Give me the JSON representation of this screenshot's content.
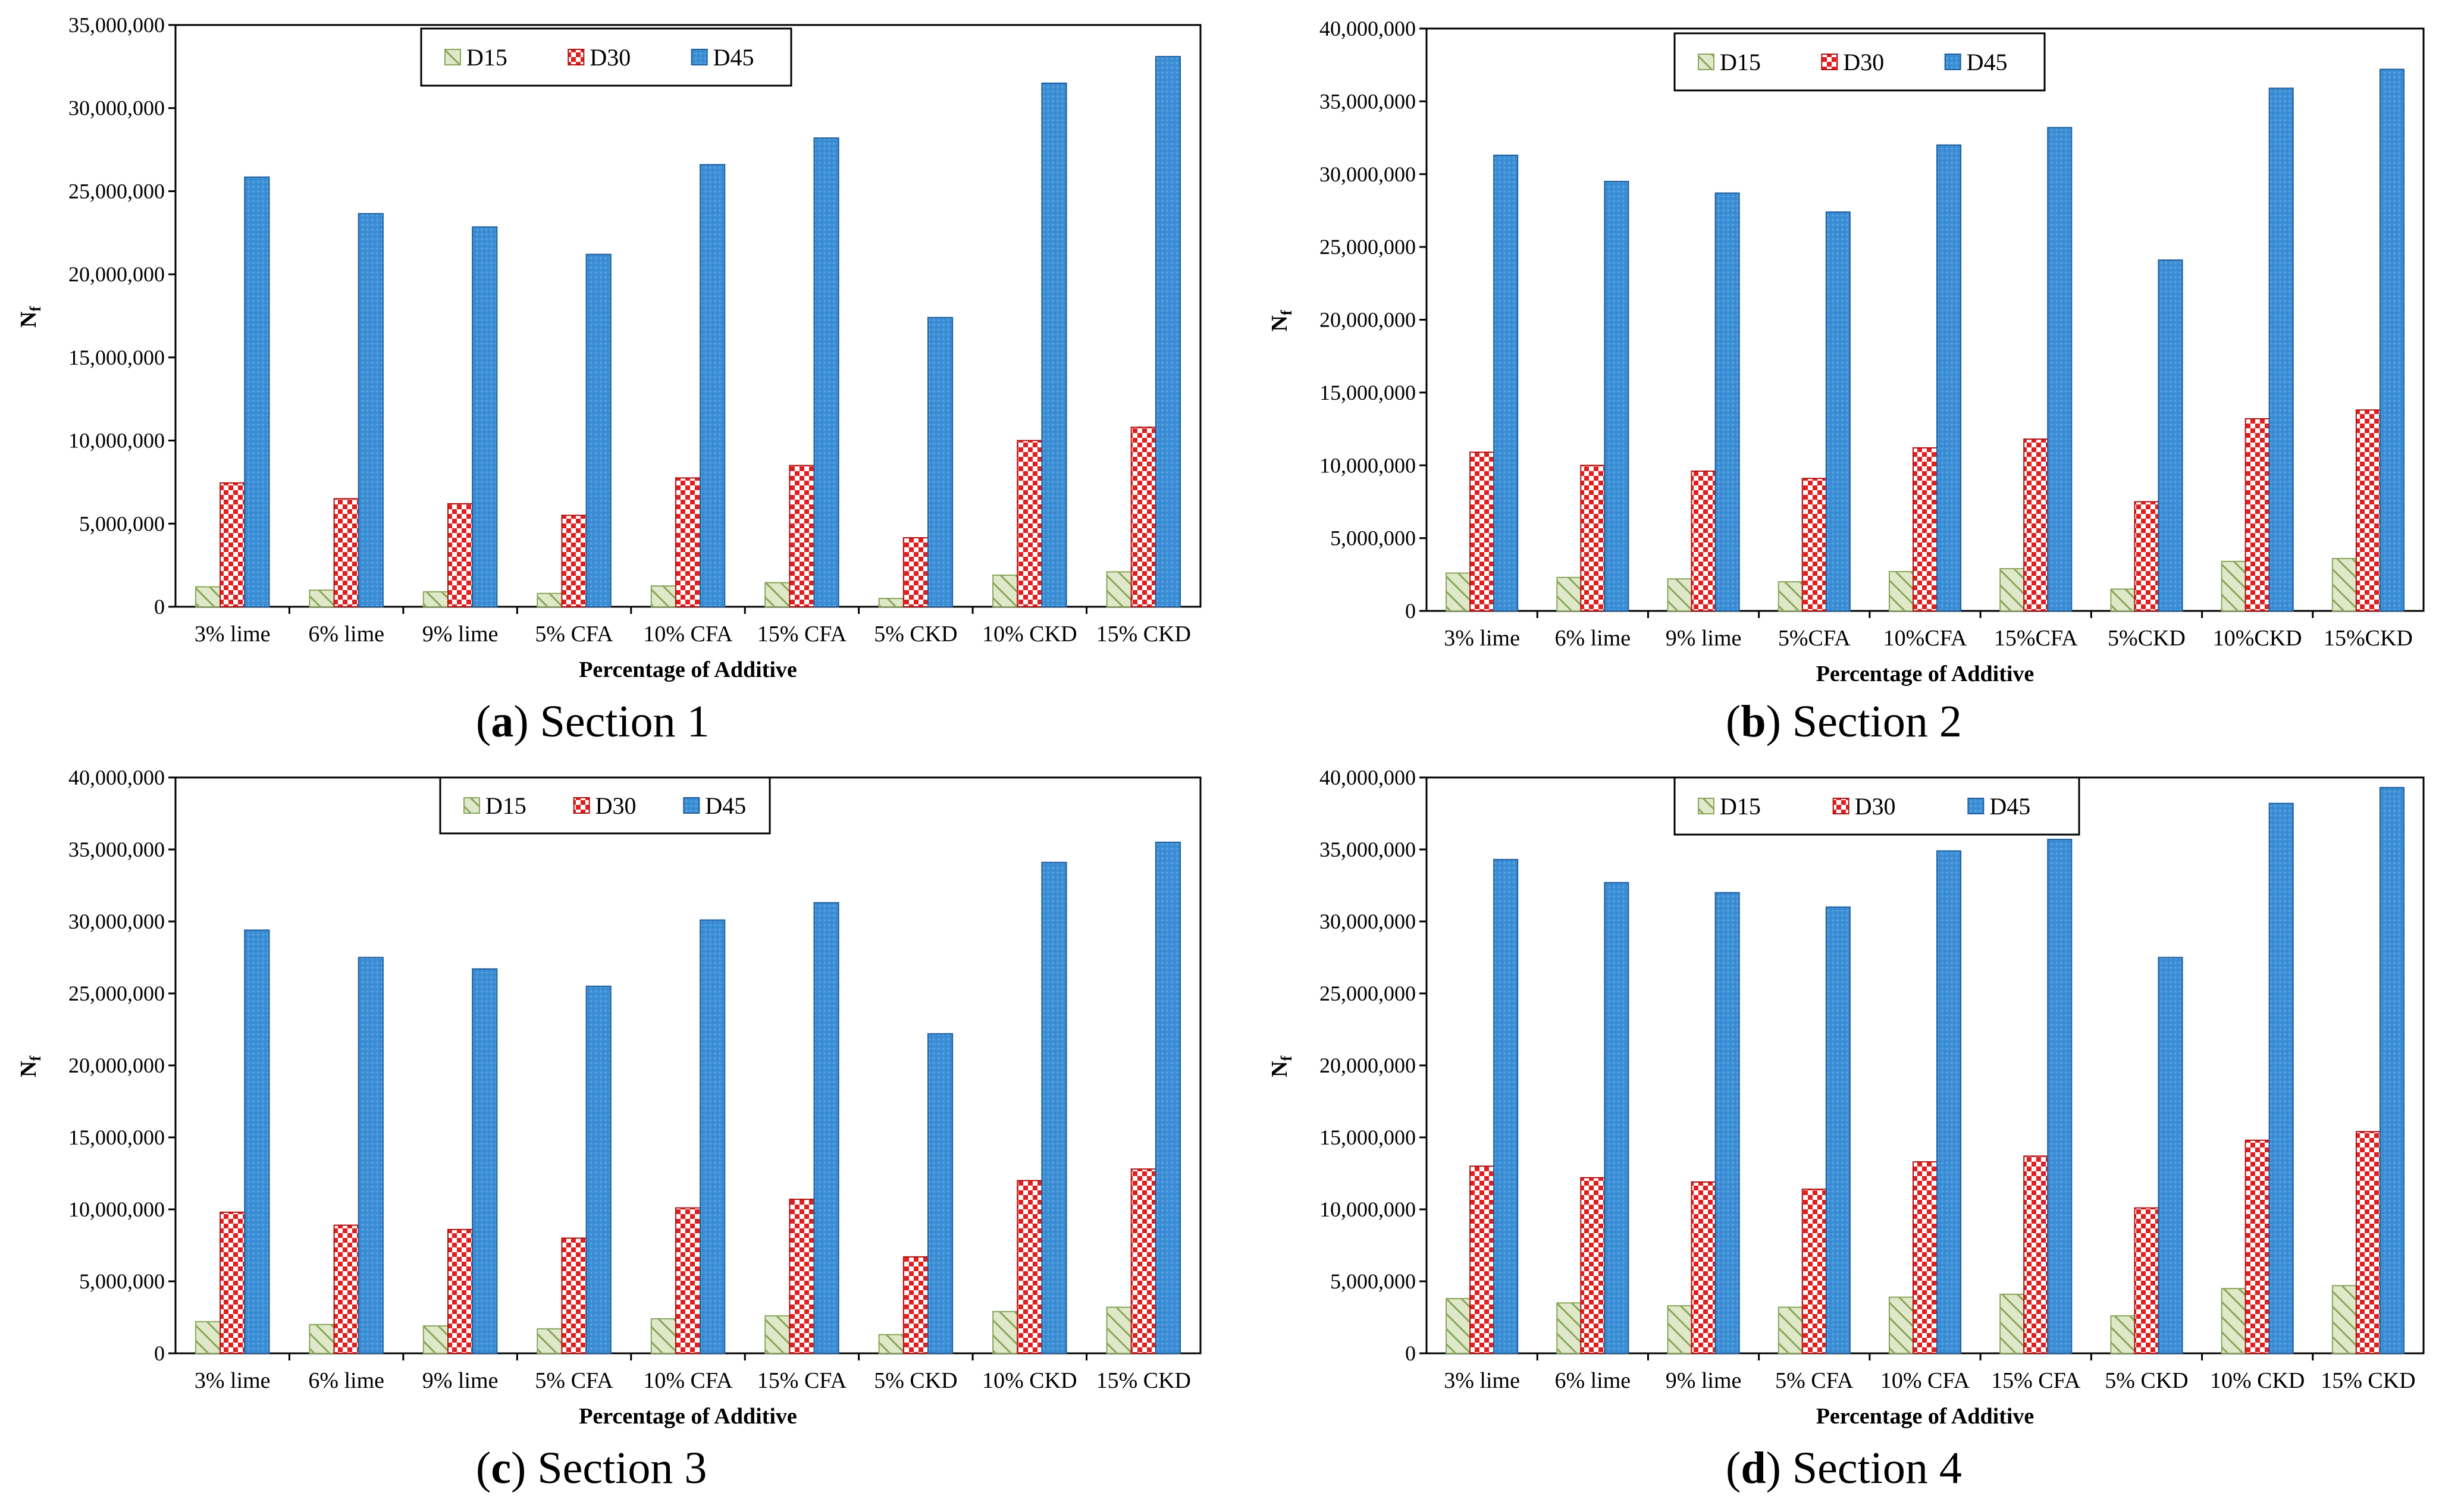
{
  "colors": {
    "D15_fill": "#dfe9c9",
    "D15_stroke": "#8aa55b",
    "D30_fill": "#ffffff",
    "D30_check": "#e02020",
    "D45_fill": "#3d8fd6",
    "D45_stroke": "#1f5f9e"
  },
  "chart_data": [
    {
      "type": "bar",
      "caption_letter": "a",
      "caption_text": " Section 1",
      "xlabel": "Percentage of Additive",
      "ylabel_main": "N",
      "ylabel_sub": "f",
      "ylim": [
        0,
        35000000
      ],
      "yticks": [
        0,
        5000000,
        10000000,
        15000000,
        20000000,
        25000000,
        30000000,
        35000000
      ],
      "ytick_labels": [
        "0",
        "5,000,000",
        "10,000,000",
        "15,000,000",
        "20,000,000",
        "25,000,000",
        "30,000,000",
        "35,000,000"
      ],
      "categories": [
        "3% lime",
        "6% lime",
        "9% lime",
        "5% CFA",
        "10% CFA",
        "15% CFA",
        "5% CKD",
        "10% CKD",
        "15% CKD"
      ],
      "series": [
        {
          "name": "D15",
          "values": [
            1200000,
            1000000,
            900000,
            800000,
            1250000,
            1450000,
            500000,
            1900000,
            2100000
          ]
        },
        {
          "name": "D30",
          "values": [
            7450000,
            6500000,
            6200000,
            5500000,
            7750000,
            8500000,
            4150000,
            10000000,
            10800000
          ]
        },
        {
          "name": "D45",
          "values": [
            25850000,
            23650000,
            22850000,
            21200000,
            26600000,
            28200000,
            17400000,
            31500000,
            33100000
          ]
        }
      ]
    },
    {
      "type": "bar",
      "caption_letter": "b",
      "caption_text": " Section 2",
      "xlabel": "Percentage of Additive",
      "ylabel_main": "N",
      "ylabel_sub": "f",
      "ylim": [
        0,
        40000000
      ],
      "yticks": [
        0,
        5000000,
        10000000,
        15000000,
        20000000,
        25000000,
        30000000,
        35000000,
        40000000
      ],
      "ytick_labels": [
        "0",
        "5,000,000",
        "10,000,000",
        "15,000,000",
        "20,000,000",
        "25,000,000",
        "30,000,000",
        "35,000,000",
        "40,000,000"
      ],
      "categories": [
        "3% lime",
        "6% lime",
        "9% lime",
        "5%CFA",
        "10%CFA",
        "15%CFA",
        "5%CKD",
        "10%CKD",
        "15%CKD"
      ],
      "series": [
        {
          "name": "D15",
          "values": [
            2600000,
            2300000,
            2200000,
            2000000,
            2700000,
            2900000,
            1500000,
            3400000,
            3600000
          ]
        },
        {
          "name": "D30",
          "values": [
            10900000,
            10000000,
            9600000,
            9100000,
            11200000,
            11800000,
            7500000,
            13200000,
            13800000
          ]
        },
        {
          "name": "D45",
          "values": [
            31300000,
            29500000,
            28700000,
            27400000,
            32000000,
            33200000,
            24100000,
            35900000,
            37200000
          ]
        }
      ]
    },
    {
      "type": "bar",
      "caption_letter": "c",
      "caption_text": " Section 3",
      "xlabel": "Percentage of Additive",
      "ylabel_main": "N",
      "ylabel_sub": "f",
      "ylim": [
        0,
        40000000
      ],
      "yticks": [
        0,
        5000000,
        10000000,
        15000000,
        20000000,
        25000000,
        30000000,
        35000000,
        40000000
      ],
      "ytick_labels": [
        "0",
        "5,000,000",
        "10,000,000",
        "15,000,000",
        "20,000,000",
        "25,000,000",
        "30,000,000",
        "35,000,000",
        "40,000,000"
      ],
      "categories": [
        "3% lime",
        "6% lime",
        "9% lime",
        "5% CFA",
        "10% CFA",
        "15% CFA",
        "5% CKD",
        "10% CKD",
        "15% CKD"
      ],
      "series": [
        {
          "name": "D15",
          "values": [
            2200000,
            2000000,
            1900000,
            1700000,
            2400000,
            2600000,
            1300000,
            2900000,
            3200000
          ]
        },
        {
          "name": "D30",
          "values": [
            9800000,
            8900000,
            8600000,
            8000000,
            10100000,
            10700000,
            6700000,
            12000000,
            12800000
          ]
        },
        {
          "name": "D45",
          "values": [
            29400000,
            27500000,
            26700000,
            25500000,
            30100000,
            31300000,
            22200000,
            34100000,
            35500000
          ]
        }
      ]
    },
    {
      "type": "bar",
      "caption_letter": "d",
      "caption_text": " Section 4",
      "xlabel": "Percentage of Additive",
      "ylabel_main": "N",
      "ylabel_sub": "f",
      "ylim": [
        0,
        40000000
      ],
      "yticks": [
        0,
        5000000,
        10000000,
        15000000,
        20000000,
        25000000,
        30000000,
        35000000,
        40000000
      ],
      "ytick_labels": [
        "0",
        "5,000,000",
        "10,000,000",
        "15,000,000",
        "20,000,000",
        "25,000,000",
        "30,000,000",
        "35,000,000",
        "40,000,000"
      ],
      "categories": [
        "3% lime",
        "6% lime",
        "9% lime",
        "5% CFA",
        "10% CFA",
        "15% CFA",
        "5% CKD",
        "10% CKD",
        "15% CKD"
      ],
      "series": [
        {
          "name": "D15",
          "values": [
            3800000,
            3500000,
            3300000,
            3200000,
            3900000,
            4100000,
            2600000,
            4500000,
            4700000
          ]
        },
        {
          "name": "D30",
          "values": [
            13000000,
            12200000,
            11900000,
            11400000,
            13300000,
            13700000,
            10100000,
            14800000,
            15400000
          ]
        },
        {
          "name": "D45",
          "values": [
            34300000,
            32700000,
            32000000,
            31000000,
            34900000,
            35700000,
            27500000,
            38200000,
            39300000
          ]
        }
      ]
    }
  ]
}
